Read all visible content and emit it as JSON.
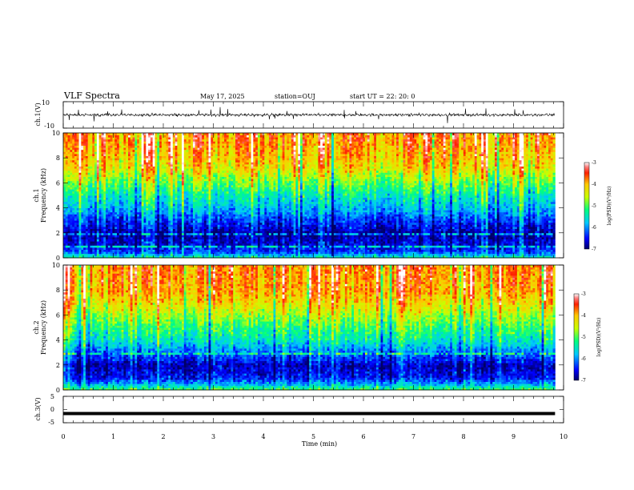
{
  "header": {
    "title": "VLF Spectra",
    "date": "May 17, 2025",
    "station": "station=OUJ",
    "start": "start  UT  =   22: 20: 0"
  },
  "chart_data": [
    {
      "type": "line",
      "name_label": "ch.1(V)",
      "ylim": [
        -10,
        10
      ],
      "y_ticks": [
        "10",
        "-10"
      ],
      "xlim": [
        0,
        10
      ],
      "description_values": "oscillating waveform near 0 V, amplitude about ±2 V with occasional spikes to about ±5 V"
    },
    {
      "type": "heatmap",
      "ylabel_line1": "ch.1",
      "ylabel_line2": "Frequency (kHz)",
      "xlim": [
        0,
        10
      ],
      "ylim": [
        0,
        10
      ],
      "y_ticks": [
        "0",
        "2",
        "4",
        "6",
        "8",
        "10"
      ],
      "colorbar": {
        "label": "log(PSD)(V²/Hz)",
        "range": [
          -7,
          -3
        ],
        "ticks": [
          "-3",
          "-4",
          "-5",
          "-6",
          "-7"
        ]
      },
      "profile": [
        {
          "f": 0.0,
          "v": -5.3
        },
        {
          "f": 0.5,
          "v": -6.3
        },
        {
          "f": 1.0,
          "v": -6.6
        },
        {
          "f": 2.0,
          "v": -6.8
        },
        {
          "f": 3.0,
          "v": -6.3
        },
        {
          "f": 4.0,
          "v": -5.8
        },
        {
          "f": 5.0,
          "v": -5.4
        },
        {
          "f": 6.0,
          "v": -4.9
        },
        {
          "f": 7.0,
          "v": -4.3
        },
        {
          "f": 8.0,
          "v": -4.0
        },
        {
          "f": 9.0,
          "v": -3.8
        },
        {
          "f": 10.0,
          "v": -3.7
        }
      ]
    },
    {
      "type": "heatmap",
      "ylabel_line1": "ch.2",
      "ylabel_line2": "Frequency (kHz)",
      "xlim": [
        0,
        10
      ],
      "ylim": [
        0,
        10
      ],
      "y_ticks": [
        "0",
        "2",
        "4",
        "6",
        "8",
        "10"
      ],
      "colorbar": {
        "label": "log(PSD)(V²/Hz)",
        "range": [
          -7,
          -3
        ],
        "ticks": [
          "-3",
          "-4",
          "-5",
          "-6",
          "-7"
        ]
      },
      "profile": [
        {
          "f": 0.0,
          "v": -5.0
        },
        {
          "f": 0.5,
          "v": -5.9
        },
        {
          "f": 1.0,
          "v": -6.5
        },
        {
          "f": 2.0,
          "v": -6.7
        },
        {
          "f": 3.0,
          "v": -6.1
        },
        {
          "f": 4.0,
          "v": -5.5
        },
        {
          "f": 5.0,
          "v": -5.1
        },
        {
          "f": 6.0,
          "v": -4.7
        },
        {
          "f": 7.0,
          "v": -4.2
        },
        {
          "f": 8.0,
          "v": -3.9
        },
        {
          "f": 9.0,
          "v": -3.8
        },
        {
          "f": 10.0,
          "v": -3.8
        }
      ]
    },
    {
      "type": "line",
      "name_label": "ch.3(V)",
      "ylim": [
        -5,
        5
      ],
      "y_ticks": [
        "5",
        "0",
        "-5"
      ],
      "xlim": [
        0,
        10
      ],
      "level": -1.5
    }
  ],
  "xaxis": {
    "label": "Time (min)",
    "ticks": [
      "0",
      "1",
      "2",
      "3",
      "4",
      "5",
      "6",
      "7",
      "8",
      "9",
      "10"
    ]
  }
}
